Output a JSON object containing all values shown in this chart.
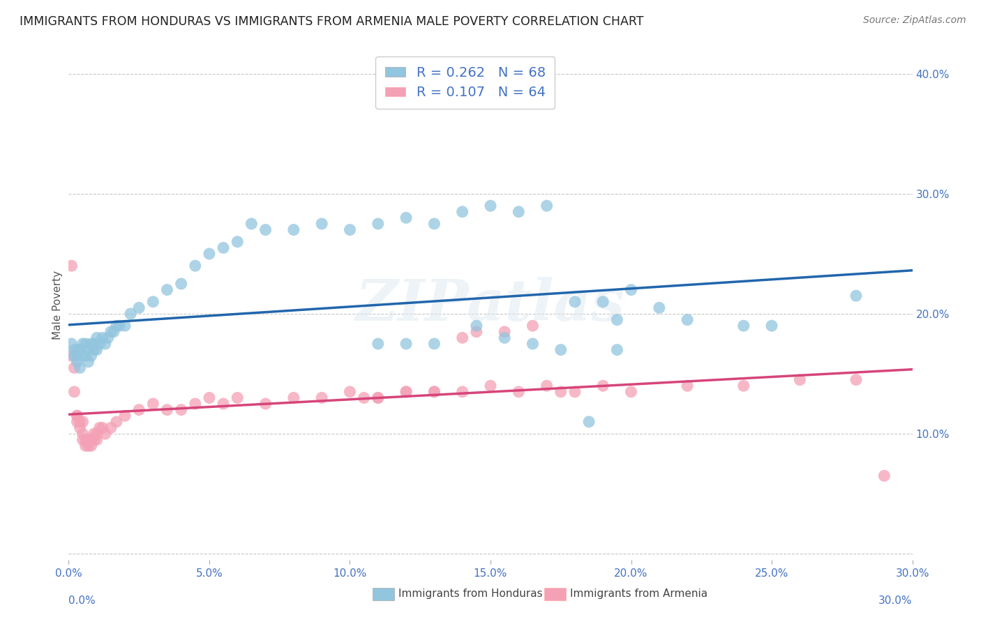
{
  "title": "IMMIGRANTS FROM HONDURAS VS IMMIGRANTS FROM ARMENIA MALE POVERTY CORRELATION CHART",
  "source": "Source: ZipAtlas.com",
  "ylabel": "Male Poverty",
  "right_yticks": [
    "",
    "10.0%",
    "20.0%",
    "30.0%",
    "40.0%"
  ],
  "right_ytick_vals": [
    0,
    0.1,
    0.2,
    0.3,
    0.4
  ],
  "xlim": [
    0.0,
    0.3
  ],
  "ylim": [
    -0.005,
    0.42
  ],
  "legend_r1_r": "R = 0.262",
  "legend_r1_n": "N = 68",
  "legend_r2_r": "R = 0.107",
  "legend_r2_n": "N = 64",
  "color_honduras": "#92c5de",
  "color_armenia": "#f4a0b5",
  "line_color_honduras": "#2166ac",
  "line_color_armenia": "#d6457a",
  "watermark": "ZIPatlas",
  "honduras_x": [
    0.001,
    0.002,
    0.002,
    0.003,
    0.003,
    0.003,
    0.004,
    0.004,
    0.005,
    0.005,
    0.006,
    0.006,
    0.007,
    0.007,
    0.008,
    0.008,
    0.009,
    0.009,
    0.01,
    0.01,
    0.011,
    0.012,
    0.013,
    0.014,
    0.015,
    0.016,
    0.017,
    0.018,
    0.02,
    0.022,
    0.025,
    0.03,
    0.035,
    0.04,
    0.045,
    0.05,
    0.055,
    0.06,
    0.065,
    0.07,
    0.08,
    0.09,
    0.1,
    0.11,
    0.12,
    0.13,
    0.14,
    0.15,
    0.16,
    0.17,
    0.18,
    0.19,
    0.2,
    0.21,
    0.22,
    0.24,
    0.25,
    0.145,
    0.195,
    0.11,
    0.12,
    0.13,
    0.155,
    0.165,
    0.175,
    0.185,
    0.195,
    0.28
  ],
  "honduras_y": [
    0.175,
    0.17,
    0.165,
    0.16,
    0.165,
    0.17,
    0.155,
    0.17,
    0.165,
    0.175,
    0.165,
    0.175,
    0.16,
    0.17,
    0.165,
    0.175,
    0.17,
    0.175,
    0.17,
    0.18,
    0.175,
    0.18,
    0.175,
    0.18,
    0.185,
    0.185,
    0.19,
    0.19,
    0.19,
    0.2,
    0.205,
    0.21,
    0.22,
    0.225,
    0.24,
    0.25,
    0.255,
    0.26,
    0.275,
    0.27,
    0.27,
    0.275,
    0.27,
    0.275,
    0.28,
    0.275,
    0.285,
    0.29,
    0.285,
    0.29,
    0.21,
    0.21,
    0.22,
    0.205,
    0.195,
    0.19,
    0.19,
    0.19,
    0.195,
    0.175,
    0.175,
    0.175,
    0.18,
    0.175,
    0.17,
    0.11,
    0.17,
    0.215
  ],
  "armenia_x": [
    0.001,
    0.001,
    0.002,
    0.002,
    0.003,
    0.003,
    0.003,
    0.004,
    0.004,
    0.005,
    0.005,
    0.005,
    0.006,
    0.006,
    0.007,
    0.007,
    0.008,
    0.008,
    0.009,
    0.009,
    0.01,
    0.01,
    0.011,
    0.012,
    0.013,
    0.015,
    0.017,
    0.02,
    0.025,
    0.03,
    0.035,
    0.04,
    0.045,
    0.05,
    0.055,
    0.06,
    0.07,
    0.08,
    0.09,
    0.1,
    0.11,
    0.12,
    0.13,
    0.14,
    0.15,
    0.16,
    0.17,
    0.18,
    0.19,
    0.2,
    0.22,
    0.24,
    0.26,
    0.28,
    0.14,
    0.145,
    0.155,
    0.165,
    0.175,
    0.13,
    0.12,
    0.11,
    0.105,
    0.29
  ],
  "armenia_y": [
    0.24,
    0.165,
    0.155,
    0.135,
    0.115,
    0.115,
    0.11,
    0.105,
    0.11,
    0.1,
    0.095,
    0.11,
    0.09,
    0.095,
    0.09,
    0.095,
    0.09,
    0.095,
    0.095,
    0.1,
    0.095,
    0.1,
    0.105,
    0.105,
    0.1,
    0.105,
    0.11,
    0.115,
    0.12,
    0.125,
    0.12,
    0.12,
    0.125,
    0.13,
    0.125,
    0.13,
    0.125,
    0.13,
    0.13,
    0.135,
    0.13,
    0.135,
    0.135,
    0.135,
    0.14,
    0.135,
    0.14,
    0.135,
    0.14,
    0.135,
    0.14,
    0.14,
    0.145,
    0.145,
    0.18,
    0.185,
    0.185,
    0.19,
    0.135,
    0.135,
    0.135,
    0.13,
    0.13,
    0.065
  ]
}
